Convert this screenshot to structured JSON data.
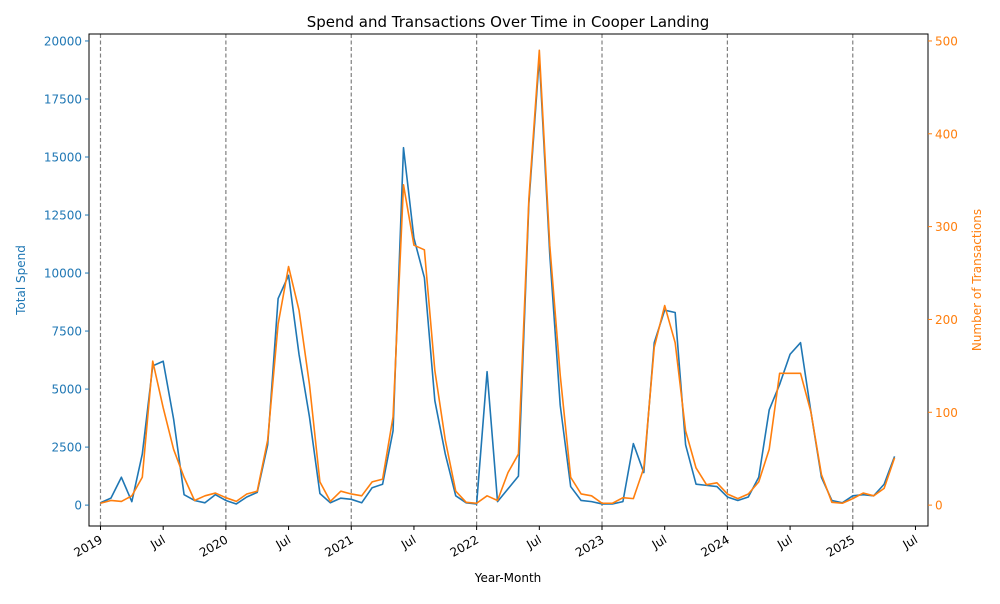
{
  "chart_data": {
    "type": "line",
    "title": "Spend and Transactions Over Time in Cooper Landing",
    "xlabel": "Year-Month",
    "ylabel_left": "Total Spend",
    "ylabel_right": "Number of Transactions",
    "left_color": "#1f77b4",
    "right_color": "#ff7f0e",
    "ylim_left": [
      -900,
      20300
    ],
    "ylim_right": [
      -22.5,
      507.5
    ],
    "left_ticks": [
      "0",
      "2500",
      "5000",
      "7500",
      "10000",
      "12500",
      "15000",
      "17500",
      "20000"
    ],
    "left_tick_values": [
      0,
      2500,
      5000,
      7500,
      10000,
      12500,
      15000,
      17500,
      20000
    ],
    "right_ticks": [
      "0",
      "100",
      "200",
      "300",
      "400",
      "500"
    ],
    "right_tick_values": [
      0,
      100,
      200,
      300,
      400,
      500
    ],
    "x_ticks": [
      {
        "label": "2019",
        "month_index": 0
      },
      {
        "label": "Jul",
        "month_index": 6
      },
      {
        "label": "2020",
        "month_index": 12
      },
      {
        "label": "Jul",
        "month_index": 18
      },
      {
        "label": "2021",
        "month_index": 24
      },
      {
        "label": "Jul",
        "month_index": 30
      },
      {
        "label": "2022",
        "month_index": 36
      },
      {
        "label": "Jul",
        "month_index": 42
      },
      {
        "label": "2023",
        "month_index": 48
      },
      {
        "label": "Jul",
        "month_index": 54
      },
      {
        "label": "2024",
        "month_index": 60
      },
      {
        "label": "Jul",
        "month_index": 66
      },
      {
        "label": "2025",
        "month_index": 72
      },
      {
        "label": "Jul",
        "month_index": 78
      }
    ],
    "x_range_months": [
      -1.1,
      79.2
    ],
    "year_boundaries": [
      0,
      12,
      24,
      36,
      48,
      60,
      72
    ],
    "series": [
      {
        "name": "Total Spend",
        "axis": "left",
        "start": "2019-01",
        "values": [
          100,
          300,
          1200,
          150,
          2200,
          6000,
          6200,
          3700,
          450,
          200,
          100,
          450,
          200,
          50,
          350,
          550,
          2600,
          8900,
          9900,
          6500,
          3800,
          500,
          100,
          300,
          250,
          100,
          750,
          900,
          3200,
          15400,
          11500,
          9800,
          4500,
          2200,
          400,
          100,
          50,
          5750,
          150,
          700,
          1250,
          13000,
          19300,
          10800,
          4300,
          800,
          200,
          150,
          50,
          50,
          150,
          2650,
          1400,
          7000,
          8400,
          8300,
          2600,
          900,
          850,
          800,
          350,
          200,
          350,
          1200,
          4100,
          5200,
          6500,
          7000,
          4000,
          1200,
          200,
          100,
          400,
          450,
          400,
          900,
          2100
        ]
      },
      {
        "name": "Number of Transactions",
        "axis": "right",
        "start": "2019-01",
        "values": [
          2,
          5,
          4,
          10,
          30,
          155,
          105,
          60,
          30,
          5,
          10,
          13,
          8,
          4,
          12,
          15,
          70,
          195,
          257,
          210,
          130,
          25,
          4,
          15,
          12,
          10,
          25,
          28,
          95,
          345,
          280,
          275,
          145,
          70,
          15,
          3,
          2,
          10,
          5,
          35,
          55,
          330,
          490,
          280,
          140,
          30,
          12,
          10,
          2,
          2,
          8,
          7,
          40,
          170,
          215,
          175,
          80,
          40,
          22,
          24,
          12,
          7,
          12,
          25,
          60,
          142,
          142,
          142,
          100,
          33,
          3,
          2,
          7,
          13,
          10,
          18,
          51
        ]
      }
    ]
  }
}
